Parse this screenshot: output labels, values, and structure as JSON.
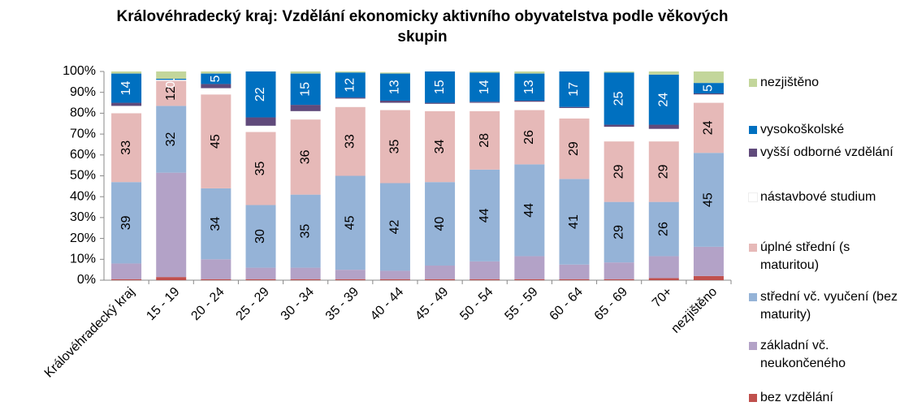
{
  "chart_data": {
    "type": "stacked_bar",
    "title": "Královéhradecký kraj: Vzdělání ekonomicky aktivního obyvatelstva podle věkových skupin",
    "categories": [
      "Královéhradecký kraj",
      "15 - 19",
      "20 - 24",
      "25 - 29",
      "30 - 34",
      "35 - 39",
      "40 - 44",
      "45 - 49",
      "50 - 54",
      "55 - 59",
      "60 - 64",
      "65 - 69",
      "70+",
      "nezjištěno"
    ],
    "ylim": [
      0,
      100
    ],
    "yticks": [
      {
        "value": 0,
        "label": "0%"
      },
      {
        "value": 10,
        "label": "10%"
      },
      {
        "value": 20,
        "label": "20%"
      },
      {
        "value": 30,
        "label": "30%"
      },
      {
        "value": 40,
        "label": "40%"
      },
      {
        "value": 50,
        "label": "50%"
      },
      {
        "value": 60,
        "label": "60%"
      },
      {
        "value": 70,
        "label": "70%"
      },
      {
        "value": 80,
        "label": "80%"
      },
      {
        "value": 90,
        "label": "90%"
      },
      {
        "value": 100,
        "label": "100%"
      }
    ],
    "legend": "right",
    "series": [
      {
        "name": "bez vzdělání",
        "color": "#c0504d",
        "values": [
          0.5,
          1.5,
          0.5,
          0.5,
          0.5,
          0.5,
          0.5,
          0.5,
          0.5,
          0.5,
          0.5,
          0.5,
          1,
          2
        ]
      },
      {
        "name": "základní vč. neukončeného",
        "color": "#b3a2c7",
        "values": [
          7.5,
          50,
          9.5,
          5.5,
          5.5,
          4.5,
          4,
          6.5,
          8.5,
          11,
          7,
          8,
          10.5,
          14
        ]
      },
      {
        "name": "střední vč. vyučení (bez maturity)",
        "color": "#95b3d7",
        "data_labels": true,
        "values": [
          39,
          32,
          34,
          30,
          35,
          45,
          42,
          40,
          44,
          44,
          41,
          29,
          26,
          45
        ]
      },
      {
        "name": "úplné střední (s maturitou)",
        "color": "#e6b9b8",
        "data_labels": true,
        "values": [
          33,
          12,
          45,
          35,
          36,
          33,
          35,
          34,
          28,
          26,
          29,
          29,
          29,
          24
        ]
      },
      {
        "name": "nástavbové studium",
        "color": "#ffffff",
        "values": [
          3.5,
          0.5,
          3,
          3,
          4,
          4,
          3.5,
          3.5,
          4,
          4,
          5,
          7,
          6,
          4
        ]
      },
      {
        "name": "vyšší odborné vzdělání",
        "color": "#604a7b",
        "values": [
          1.5,
          0,
          2,
          4,
          3,
          0.5,
          1,
          0.5,
          0.5,
          0.5,
          0.5,
          1,
          2,
          0.5
        ]
      },
      {
        "name": "vysokoškolské",
        "color": "#0070c0",
        "data_labels": true,
        "values": [
          14,
          0.5,
          5,
          22,
          15,
          12,
          13,
          15,
          14,
          13,
          17,
          25,
          24,
          5
        ]
      },
      {
        "name": "nezjištěno",
        "color": "#c3d69b",
        "values": [
          1,
          3.5,
          1,
          0,
          1,
          0.5,
          0.5,
          0,
          0.5,
          1,
          0,
          0.5,
          1.5,
          5.5
        ]
      }
    ]
  }
}
